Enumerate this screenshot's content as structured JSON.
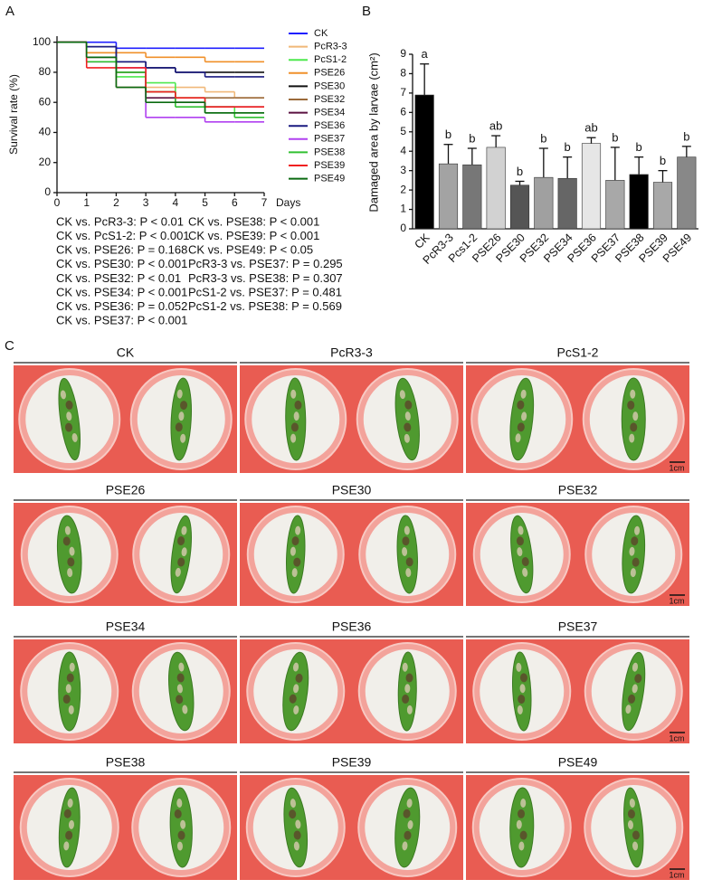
{
  "chart_data": [
    {
      "type": "line",
      "panel_label": "A",
      "drawstyle": "steps-post",
      "ylabel": "Survival rate (%)",
      "xlabel": "Days",
      "x": [
        0,
        1,
        2,
        3,
        4,
        5,
        6,
        7
      ],
      "xlim": [
        0,
        7
      ],
      "xticks": [
        0,
        1,
        2,
        3,
        4,
        5,
        6,
        7
      ],
      "ylim": [
        0,
        104
      ],
      "yticks": [
        0,
        20,
        40,
        60,
        80,
        100
      ],
      "legend": "right",
      "series": [
        {
          "name": "CK",
          "color": "#1f1fff",
          "values": [
            100,
            100,
            96,
            96,
            96,
            96,
            96,
            96
          ]
        },
        {
          "name": "PcR3-3",
          "color": "#f0b878",
          "values": [
            100,
            93,
            80,
            70,
            70,
            67,
            63,
            63
          ]
        },
        {
          "name": "PcS1-2",
          "color": "#4de84d",
          "values": [
            100,
            90,
            77,
            73,
            63,
            57,
            53,
            53
          ]
        },
        {
          "name": "PSE26",
          "color": "#f0902a",
          "values": [
            100,
            93,
            93,
            90,
            90,
            87,
            87,
            87
          ]
        },
        {
          "name": "PSE30",
          "color": "#111111",
          "values": [
            100,
            97,
            87,
            83,
            80,
            80,
            80,
            80
          ]
        },
        {
          "name": "PSE32",
          "color": "#9b6a3a",
          "values": [
            100,
            90,
            70,
            67,
            63,
            63,
            63,
            63
          ]
        },
        {
          "name": "PSE34",
          "color": "#5a1040",
          "values": [
            100,
            90,
            80,
            63,
            60,
            57,
            57,
            57
          ]
        },
        {
          "name": "PSE36",
          "color": "#1a1a80",
          "values": [
            100,
            97,
            87,
            83,
            80,
            77,
            77,
            77
          ]
        },
        {
          "name": "PSE37",
          "color": "#b040f0",
          "values": [
            100,
            87,
            83,
            50,
            50,
            47,
            47,
            47
          ]
        },
        {
          "name": "PSE38",
          "color": "#30c030",
          "values": [
            100,
            87,
            80,
            67,
            57,
            53,
            50,
            50
          ]
        },
        {
          "name": "PSE39",
          "color": "#f02020",
          "values": [
            100,
            83,
            83,
            67,
            63,
            57,
            57,
            57
          ]
        },
        {
          "name": "PSE49",
          "color": "#0a6a10",
          "values": [
            100,
            90,
            70,
            60,
            60,
            53,
            53,
            53
          ]
        }
      ],
      "annotation_columns": [
        [
          "CK vs. PcR3-3: P < 0.01",
          "CK vs. PcS1-2: P < 0.001",
          "CK vs. PSE26: P = 0.168",
          "CK vs. PSE30: P < 0.001",
          "CK vs. PSE32: P < 0.01",
          "CK vs. PSE34: P < 0.001",
          "CK vs. PSE36: P = 0.052",
          "CK vs. PSE37: P < 0.001"
        ],
        [
          "CK vs. PSE38: P < 0.001",
          "CK vs. PSE39: P < 0.001",
          "CK vs. PSE49: P < 0.05",
          "PcR3-3 vs. PSE37: P = 0.295",
          "PcR3-3 vs. PSE38: P = 0.307",
          "PcS1-2 vs. PSE37: P = 0.481",
          "PcS1-2 vs. PSE38: P = 0.569"
        ]
      ]
    },
    {
      "type": "bar",
      "panel_label": "B",
      "ylabel": "Damaged area by larvae (cm²)",
      "categories": [
        "CK",
        "PcR3-3",
        "Pcs1-2",
        "PSE26",
        "PSE30",
        "PSE32",
        "PSE34",
        "PSE36",
        "PSE37",
        "PSE38",
        "PSE39",
        "PSE49"
      ],
      "values": [
        6.9,
        3.35,
        3.3,
        4.2,
        2.25,
        2.65,
        2.6,
        4.4,
        2.5,
        2.8,
        2.4,
        3.7
      ],
      "errors": [
        1.6,
        1.0,
        0.85,
        0.6,
        0.2,
        1.5,
        1.1,
        0.3,
        1.7,
        0.9,
        0.6,
        0.55
      ],
      "colors": [
        "#000000",
        "#a3a3a3",
        "#777777",
        "#d2d2d2",
        "#555555",
        "#a0a0a0",
        "#666666",
        "#e6e6e6",
        "#a8a8a8",
        "#000000",
        "#a8a8a8",
        "#888888"
      ],
      "group_labels": [
        "a",
        "b",
        "b",
        "ab",
        "b",
        "b",
        "b",
        "ab",
        "b",
        "b",
        "b",
        "b"
      ],
      "ylim": [
        0,
        9
      ],
      "yticks": [
        0,
        1,
        2,
        3,
        4,
        5,
        6,
        7,
        8,
        9
      ]
    }
  ],
  "panel_c": {
    "panel_label": "C",
    "scale_label": "1cm",
    "groups": [
      "CK",
      "PcR3-3",
      "PcS1-2",
      "PSE26",
      "PSE30",
      "PSE32",
      "PSE34",
      "PSE36",
      "PSE37",
      "PSE38",
      "PSE39",
      "PSE49"
    ]
  }
}
